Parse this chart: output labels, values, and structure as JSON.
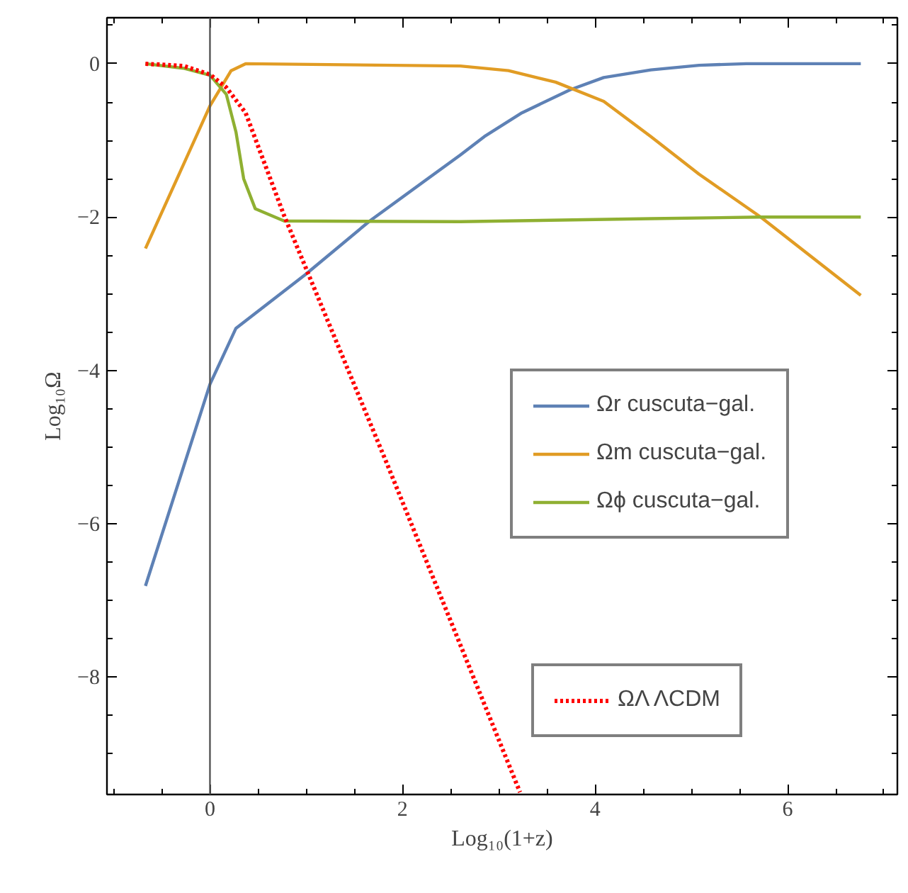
{
  "chart_data": {
    "type": "line",
    "xlabel": "Log₁₀(1+z)",
    "ylabel": "Log₁₀Ω",
    "xlim": [
      -1.07,
      7.14
    ],
    "ylim": [
      -9.53,
      0.6
    ],
    "xticks": [
      {
        "value": -1,
        "label": null
      },
      {
        "value": -0.5,
        "label": null
      },
      0,
      {
        "value": 0.5,
        "label": null
      },
      {
        "value": 1,
        "label": null
      },
      {
        "value": 1.5,
        "label": null
      },
      2,
      {
        "value": 2.5,
        "label": null
      },
      {
        "value": 3,
        "label": null
      },
      {
        "value": 3.5,
        "label": null
      },
      4,
      {
        "value": 4.5,
        "label": null
      },
      {
        "value": 5,
        "label": null
      },
      {
        "value": 5.5,
        "label": null
      },
      6,
      {
        "value": 6.5,
        "label": null
      },
      {
        "value": 7,
        "label": null
      }
    ],
    "yticks": [
      {
        "value": 0.5,
        "label": null
      },
      0,
      {
        "value": -0.5,
        "label": null
      },
      {
        "value": -1,
        "label": null
      },
      {
        "value": -1.5,
        "label": null
      },
      -2,
      {
        "value": -2.5,
        "label": null
      },
      {
        "value": -3,
        "label": null
      },
      {
        "value": -3.5,
        "label": null
      },
      -4,
      {
        "value": -4.5,
        "label": null
      },
      {
        "value": -5,
        "label": null
      },
      {
        "value": -5.5,
        "label": null
      },
      -6,
      {
        "value": -6.5,
        "label": null
      },
      {
        "value": -7,
        "label": null
      },
      {
        "value": -7.5,
        "label": null
      },
      -8,
      {
        "value": -8.5,
        "label": null
      },
      {
        "value": -9,
        "label": null
      }
    ],
    "grid": false,
    "legend": "right",
    "ref_lines": [
      {
        "axis": "x",
        "value": 0,
        "color": "#555555"
      }
    ],
    "series": [
      {
        "name": "Ωr cuscuta−gal.",
        "color": "#5e81b5",
        "line_style": "solid",
        "x": [
          -0.67,
          0,
          0.27,
          0.99,
          1.66,
          2.6,
          2.85,
          3.24,
          3.74,
          4.09,
          4.58,
          5.08,
          5.57,
          6.76
        ],
        "values": [
          -6.81,
          -4.18,
          -3.45,
          -2.75,
          -2.05,
          -1.19,
          -0.95,
          -0.64,
          -0.34,
          -0.18,
          -0.08,
          -0.02,
          0,
          0
        ]
      },
      {
        "name": "Ωm cuscuta−gal.",
        "color": "#e19c24",
        "line_style": "solid",
        "x": [
          -0.67,
          0,
          0.22,
          0.37,
          2.6,
          3.1,
          3.59,
          4.09,
          4.58,
          5.08,
          5.72,
          6.76
        ],
        "values": [
          -2.41,
          -0.55,
          -0.09,
          0,
          -0.03,
          -0.09,
          -0.24,
          -0.49,
          -0.95,
          -1.44,
          -2.0,
          -3.02
        ]
      },
      {
        "name": "Ωϕ cuscuta−gal.",
        "color": "#8fb032",
        "line_style": "solid",
        "x": [
          -0.67,
          -0.27,
          0,
          0.17,
          0.27,
          0.35,
          0.47,
          0.77,
          2.6,
          4.58,
          5.72,
          6.76
        ],
        "values": [
          0,
          -0.06,
          -0.15,
          -0.4,
          -0.89,
          -1.5,
          -1.89,
          -2.05,
          -2.06,
          -2.02,
          -2.0,
          -2.0
        ]
      },
      {
        "name": "ΩΛ ΛCDM",
        "color": "#ff0000",
        "line_style": "dotted",
        "x": [
          -0.67,
          -0.27,
          0,
          0.17,
          0.37,
          0.77,
          1.83,
          3.22
        ],
        "values": [
          0,
          -0.03,
          -0.14,
          -0.31,
          -0.64,
          -1.98,
          -5.19,
          -9.5
        ]
      }
    ]
  }
}
